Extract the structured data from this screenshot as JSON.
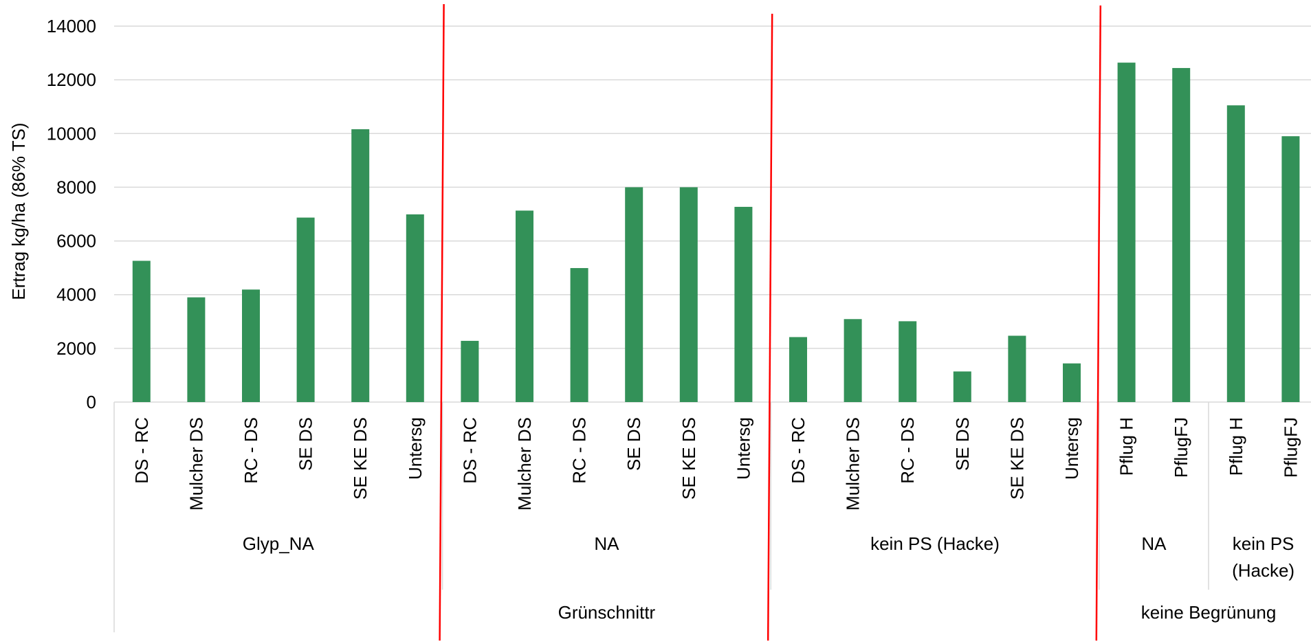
{
  "chart_data": {
    "type": "bar",
    "ylabel": "Ertrag kg/ha (86% TS)",
    "ylim": [
      0,
      14000
    ],
    "yticks": [
      0,
      2000,
      4000,
      6000,
      8000,
      10000,
      12000,
      14000
    ],
    "grid": true,
    "bar_color": "#339158",
    "annotation_color": "#ff0000",
    "categories": [
      {
        "label": "DS - RC",
        "value": 5260
      },
      {
        "label": "Mulcher DS",
        "value": 3900
      },
      {
        "label": "RC - DS",
        "value": 4190
      },
      {
        "label": "SE DS",
        "value": 6870
      },
      {
        "label": "SE KE DS",
        "value": 10160
      },
      {
        "label": "Untersg",
        "value": 6990
      },
      {
        "label": "DS - RC",
        "value": 2280
      },
      {
        "label": "Mulcher DS",
        "value": 7130
      },
      {
        "label": "RC - DS",
        "value": 4990
      },
      {
        "label": "SE DS",
        "value": 8000
      },
      {
        "label": "SE KE DS",
        "value": 8000
      },
      {
        "label": "Untersg",
        "value": 7270
      },
      {
        "label": "DS - RC",
        "value": 2420
      },
      {
        "label": "Mulcher DS",
        "value": 3090
      },
      {
        "label": "RC - DS",
        "value": 3010
      },
      {
        "label": "SE DS",
        "value": 1140
      },
      {
        "label": "SE KE DS",
        "value": 2470
      },
      {
        "label": "Untersg",
        "value": 1440
      },
      {
        "label": "Pflug H",
        "value": 12640
      },
      {
        "label": "PflugFJ",
        "value": 12440
      },
      {
        "label": "Pflug H",
        "value": 11050
      },
      {
        "label": "PflugFJ",
        "value": 9900
      }
    ],
    "groups": [
      {
        "label_lines": [
          "Glyp_NA"
        ],
        "count": 6
      },
      {
        "label_lines": [
          "NA"
        ],
        "count": 6
      },
      {
        "label_lines": [
          "kein PS (Hacke)"
        ],
        "count": 6
      },
      {
        "label_lines": [
          "NA"
        ],
        "count": 2
      },
      {
        "label_lines": [
          "kein PS",
          "(Hacke)"
        ],
        "count": 2
      }
    ],
    "super_groups": [
      {
        "label": "Grünschnittr",
        "count": 18
      },
      {
        "label": "keine Begrünung",
        "count": 4
      }
    ]
  }
}
